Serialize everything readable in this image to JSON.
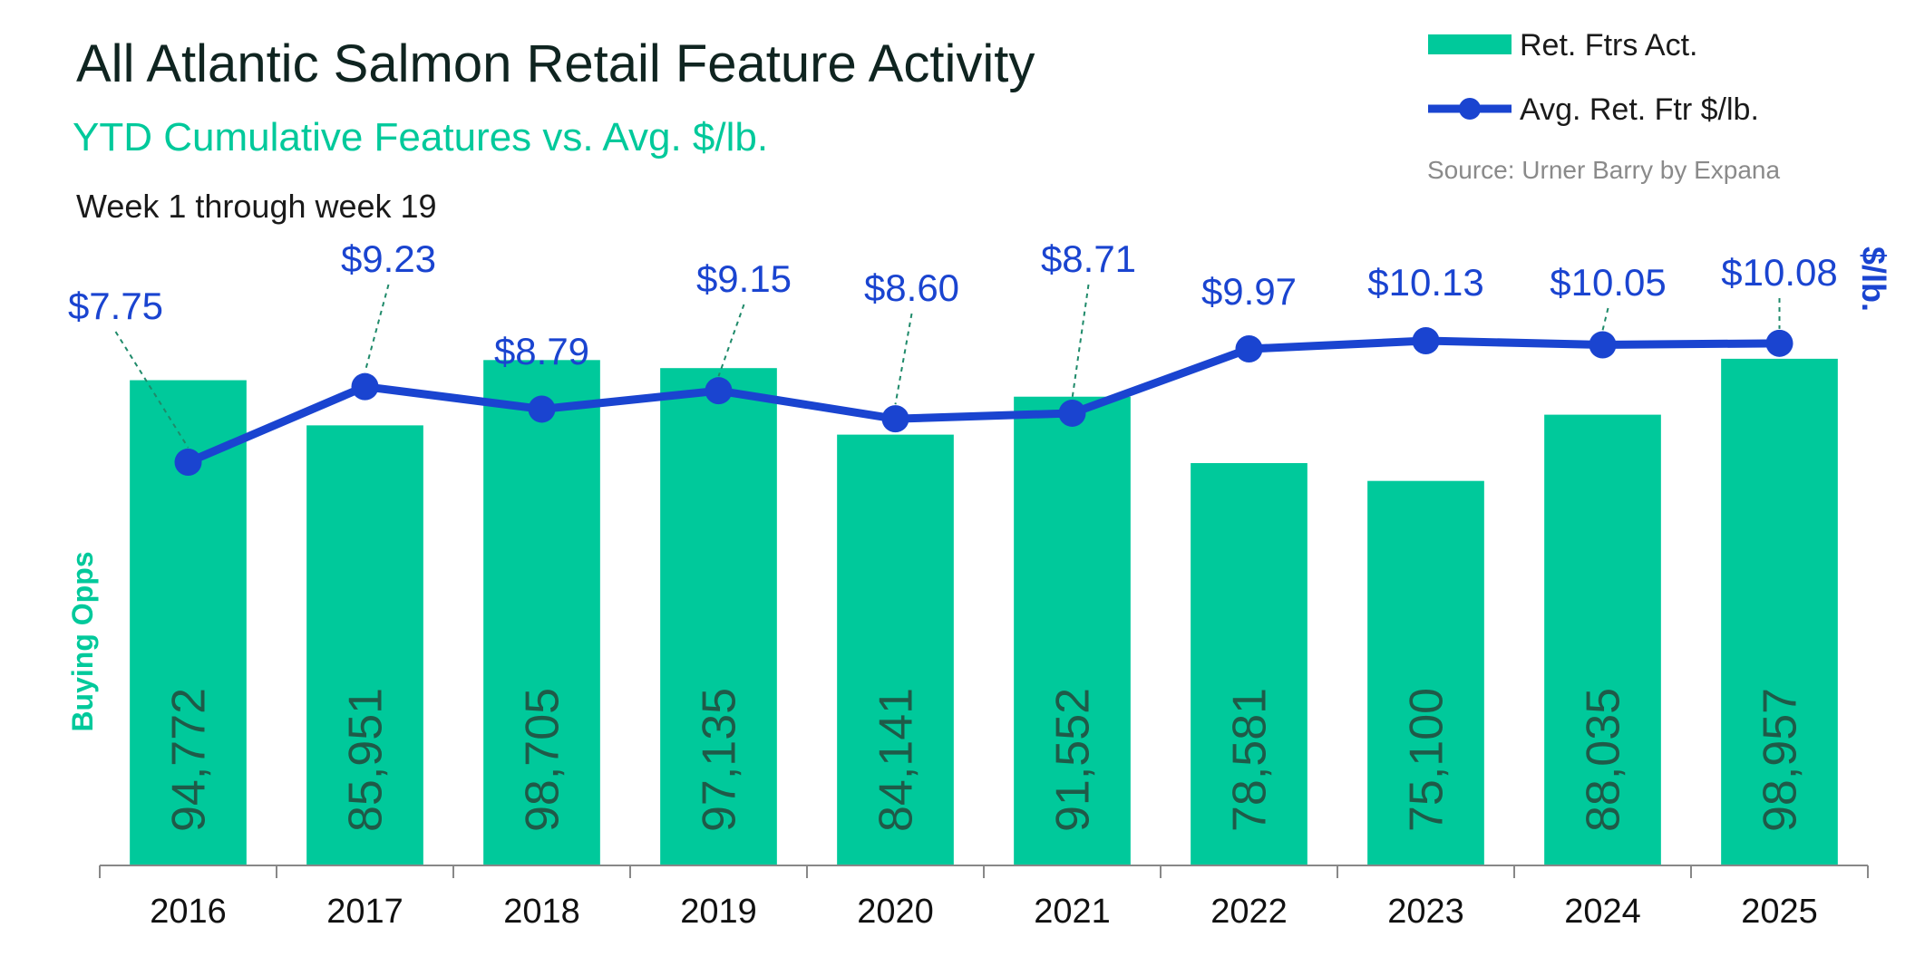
{
  "chart_data": {
    "type": "bar",
    "title": "All Atlantic Salmon Retail Feature Activity",
    "subtitle": "YTD Cumulative Features vs. Avg. $/lb.",
    "period": "Week 1 through week 19",
    "source": "Source: Urner Barry by Expana",
    "ylabel_left": "Buying Opps",
    "ylabel_right": "$/lb.",
    "categories": [
      "2016",
      "2017",
      "2018",
      "2019",
      "2020",
      "2021",
      "2022",
      "2023",
      "2024",
      "2025"
    ],
    "series": [
      {
        "name": "Ret. Ftrs Act.",
        "type": "bar",
        "axis": "left",
        "values": [
          94772,
          85951,
          98705,
          97135,
          84141,
          91552,
          78581,
          75100,
          88035,
          98957
        ],
        "labels": [
          "94,772",
          "85,951",
          "98,705",
          "97,135",
          "84,141",
          "91,552",
          "78,581",
          "75,100",
          "88,035",
          "98,957"
        ]
      },
      {
        "name": "Avg. Ret. Ftr $/lb.",
        "type": "line",
        "axis": "right",
        "values": [
          7.75,
          9.23,
          8.79,
          9.15,
          8.6,
          8.71,
          9.97,
          10.13,
          10.05,
          10.08
        ],
        "labels": [
          "$7.75",
          "$9.23",
          "$8.79",
          "$9.15",
          "$8.60",
          "$8.71",
          "$9.97",
          "$10.13",
          "$10.05",
          "$10.08"
        ]
      }
    ],
    "ylim_left": [
      0,
      100000
    ],
    "ylim_right": [
      0,
      10.5
    ],
    "grid": false,
    "legend_position": "top-right",
    "colors": {
      "bar": "#00c99b",
      "line": "#1a44d0",
      "subtitle": "#00c99b",
      "axis_title_left": "#00c99b",
      "axis_title_right": "#1a44d0",
      "leader": "#1f8a6a"
    }
  }
}
